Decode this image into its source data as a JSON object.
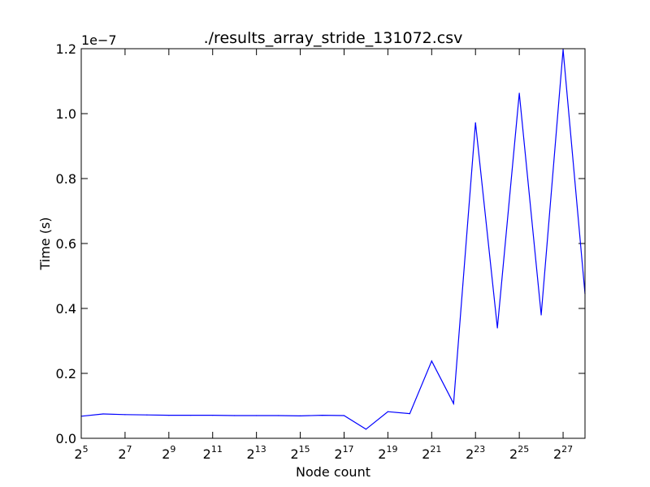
{
  "chart_data": {
    "type": "line",
    "title": "./results_array_stride_131072.csv",
    "xlabel": "Node count",
    "ylabel": "Time (s)",
    "x_scale": "log2",
    "xlim": [
      5,
      28
    ],
    "ylim": [
      0,
      1.2e-07
    ],
    "y_offset_label": "1e−7",
    "x_ticks": [
      {
        "base": "2",
        "exp": "5",
        "value": 5
      },
      {
        "base": "2",
        "exp": "7",
        "value": 7
      },
      {
        "base": "2",
        "exp": "9",
        "value": 9
      },
      {
        "base": "2",
        "exp": "11",
        "value": 11
      },
      {
        "base": "2",
        "exp": "13",
        "value": 13
      },
      {
        "base": "2",
        "exp": "15",
        "value": 15
      },
      {
        "base": "2",
        "exp": "17",
        "value": 17
      },
      {
        "base": "2",
        "exp": "19",
        "value": 19
      },
      {
        "base": "2",
        "exp": "21",
        "value": 21
      },
      {
        "base": "2",
        "exp": "23",
        "value": 23
      },
      {
        "base": "2",
        "exp": "25",
        "value": 25
      },
      {
        "base": "2",
        "exp": "27",
        "value": 27
      }
    ],
    "y_ticks": [
      {
        "label": "0.0",
        "value": 0
      },
      {
        "label": "0.2",
        "value": 2e-08
      },
      {
        "label": "0.4",
        "value": 4e-08
      },
      {
        "label": "0.6",
        "value": 6e-08
      },
      {
        "label": "0.8",
        "value": 8e-08
      },
      {
        "label": "1.0",
        "value": 1e-07
      },
      {
        "label": "1.2",
        "value": 1.2e-07
      }
    ],
    "series": [
      {
        "color": "#0000ff",
        "x_exp": [
          5,
          6,
          7,
          8,
          9,
          10,
          11,
          12,
          13,
          14,
          15,
          16,
          17,
          18,
          19,
          20,
          21,
          22,
          23,
          24,
          25,
          26,
          27,
          28
        ],
        "values": [
          6.8e-09,
          7.5e-09,
          7.3e-09,
          7.2e-09,
          7.1e-09,
          7.1e-09,
          7.1e-09,
          7e-09,
          7e-09,
          7e-09,
          6.9e-09,
          7.1e-09,
          7e-09,
          2.8e-09,
          8.2e-09,
          7.6e-09,
          2.38e-08,
          1.07e-08,
          9.72e-08,
          3.4e-08,
          1.063e-07,
          3.8e-08,
          1.197e-07,
          4.45e-08
        ]
      }
    ],
    "grid": false,
    "legend": "none"
  }
}
